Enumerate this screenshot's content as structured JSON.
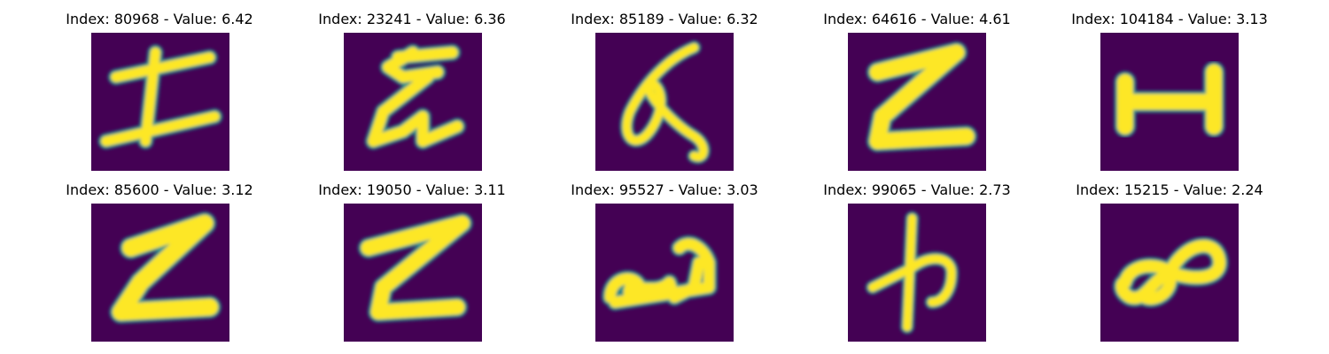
{
  "figure": {
    "background": "#ffffff",
    "colormap": {
      "low": "#440154",
      "mid": "#21918c",
      "high": "#fde725"
    },
    "panels": [
      {
        "title": "Index: 80968 - Value: 6.42",
        "glyph": "I-shape"
      },
      {
        "title": "Index: 23241 - Value: 6.36",
        "glyph": "G-shape"
      },
      {
        "title": "Index: 85189 - Value: 6.32",
        "glyph": "loop-shape"
      },
      {
        "title": "Index: 64616 - Value: 4.61",
        "glyph": "Z-shape"
      },
      {
        "title": "Index: 104184 - Value: 3.13",
        "glyph": "H-bar-shape"
      },
      {
        "title": "Index: 85600 - Value: 3.12",
        "glyph": "Z-shape"
      },
      {
        "title": "Index: 19050 - Value: 3.11",
        "glyph": "Z-shape"
      },
      {
        "title": "Index: 95527 - Value: 3.03",
        "glyph": "script-shape"
      },
      {
        "title": "Index: 99065 - Value: 2.73",
        "glyph": "cross-hook-shape"
      },
      {
        "title": "Index: 15215 - Value: 2.24",
        "glyph": "infinity-shape"
      }
    ]
  }
}
